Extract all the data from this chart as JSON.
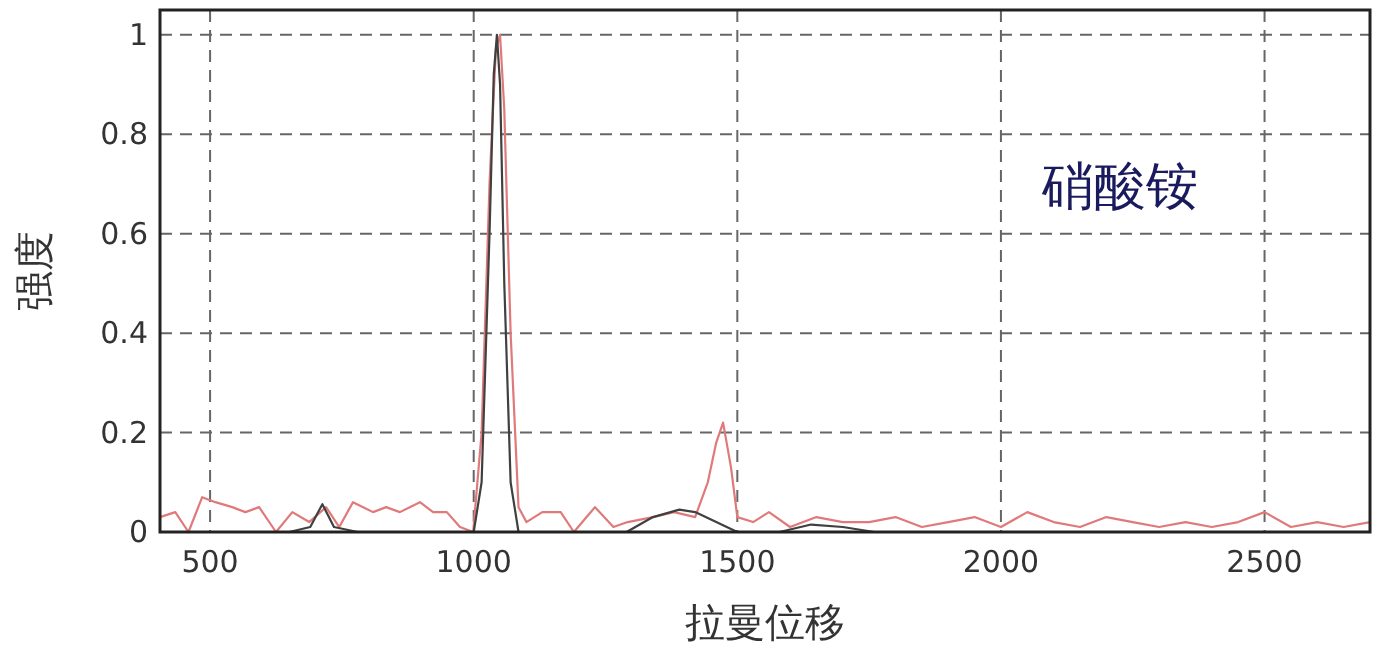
{
  "chart_data": {
    "type": "line",
    "xlabel": "拉曼位移",
    "ylabel": "强度",
    "annotations": [
      "硝酸铵"
    ],
    "xlim": [
      405,
      2700
    ],
    "ylim": [
      0,
      1.05
    ],
    "xticks": [
      500,
      1000,
      1500,
      2000,
      2500
    ],
    "yticks": [
      0,
      0.2,
      0.4,
      0.6,
      0.8,
      1
    ],
    "grid": true,
    "line_style": "solid",
    "series": [
      {
        "color": "#e07a7a",
        "x": [
          405,
          434,
          459,
          485,
          510,
          542,
          567,
          593,
          625,
          656,
          688,
          720,
          745,
          771,
          809,
          834,
          860,
          898,
          923,
          949,
          974,
          999,
          1015,
          1030,
          1042,
          1050,
          1058,
          1070,
          1085,
          1100,
          1130,
          1165,
          1190,
          1230,
          1265,
          1292,
          1340,
          1380,
          1420,
          1444,
          1460,
          1473,
          1488,
          1500,
          1530,
          1560,
          1600,
          1650,
          1700,
          1750,
          1800,
          1850,
          1900,
          1950,
          2000,
          2050,
          2100,
          2150,
          2200,
          2250,
          2300,
          2350,
          2400,
          2450,
          2500,
          2550,
          2600,
          2650,
          2700
        ],
        "values": [
          0.03,
          0.04,
          0.0,
          0.07,
          0.06,
          0.05,
          0.04,
          0.05,
          0.0,
          0.04,
          0.02,
          0.05,
          0.01,
          0.06,
          0.04,
          0.05,
          0.04,
          0.06,
          0.04,
          0.04,
          0.01,
          0.0,
          0.2,
          0.7,
          0.97,
          1.0,
          0.85,
          0.4,
          0.05,
          0.02,
          0.04,
          0.04,
          0.0,
          0.05,
          0.01,
          0.02,
          0.03,
          0.04,
          0.03,
          0.1,
          0.18,
          0.22,
          0.13,
          0.03,
          0.02,
          0.04,
          0.01,
          0.03,
          0.02,
          0.02,
          0.03,
          0.01,
          0.02,
          0.03,
          0.01,
          0.04,
          0.02,
          0.01,
          0.03,
          0.02,
          0.01,
          0.02,
          0.01,
          0.02,
          0.04,
          0.01,
          0.02,
          0.01,
          0.02
        ]
      },
      {
        "color": "#404040",
        "x": [
          405,
          650,
          690,
          713,
          735,
          780,
          1000,
          1015,
          1030,
          1038,
          1044,
          1050,
          1058,
          1070,
          1085,
          1290,
          1340,
          1390,
          1420,
          1460,
          1500,
          1580,
          1640,
          1700,
          1760,
          2700
        ],
        "values": [
          0,
          0,
          0.01,
          0.056,
          0.01,
          0,
          0,
          0.1,
          0.6,
          0.92,
          1.0,
          0.9,
          0.5,
          0.1,
          0,
          0,
          0.03,
          0.045,
          0.04,
          0.02,
          0,
          0,
          0.015,
          0.01,
          0,
          0
        ]
      }
    ]
  }
}
